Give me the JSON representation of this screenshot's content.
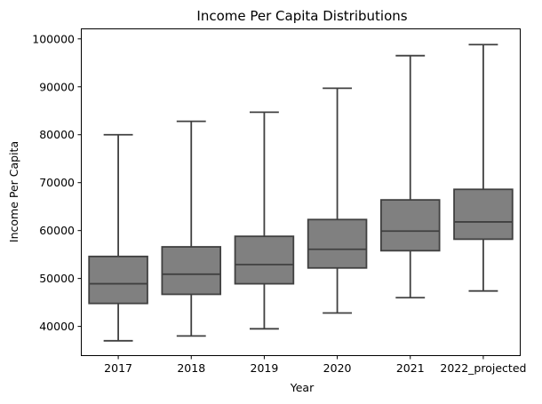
{
  "chart_data": {
    "type": "box",
    "title": "Income Per Capita Distributions",
    "xlabel": "Year",
    "ylabel": "Income Per Capita",
    "ylim": [
      34000,
      102000
    ],
    "yticks": [
      40000,
      50000,
      60000,
      70000,
      80000,
      90000,
      100000
    ],
    "grid": false,
    "box_color": "#808080",
    "line_color": "#404040",
    "categories": [
      "2017",
      "2018",
      "2019",
      "2020",
      "2021",
      "2022_projected"
    ],
    "boxes": [
      {
        "label": "2017",
        "whisker_low": 37000,
        "q1": 44800,
        "median": 48900,
        "q3": 54600,
        "whisker_high": 80000
      },
      {
        "label": "2018",
        "whisker_low": 38000,
        "q1": 46700,
        "median": 50900,
        "q3": 56600,
        "whisker_high": 82800
      },
      {
        "label": "2019",
        "whisker_low": 39500,
        "q1": 48900,
        "median": 52900,
        "q3": 58800,
        "whisker_high": 84700
      },
      {
        "label": "2020",
        "whisker_low": 42800,
        "q1": 52200,
        "median": 56100,
        "q3": 62300,
        "whisker_high": 89700
      },
      {
        "label": "2021",
        "whisker_low": 46000,
        "q1": 55800,
        "median": 59900,
        "q3": 66400,
        "whisker_high": 96500
      },
      {
        "label": "2022_projected",
        "whisker_low": 47400,
        "q1": 58200,
        "median": 61800,
        "q3": 68600,
        "whisker_high": 98800
      }
    ]
  }
}
